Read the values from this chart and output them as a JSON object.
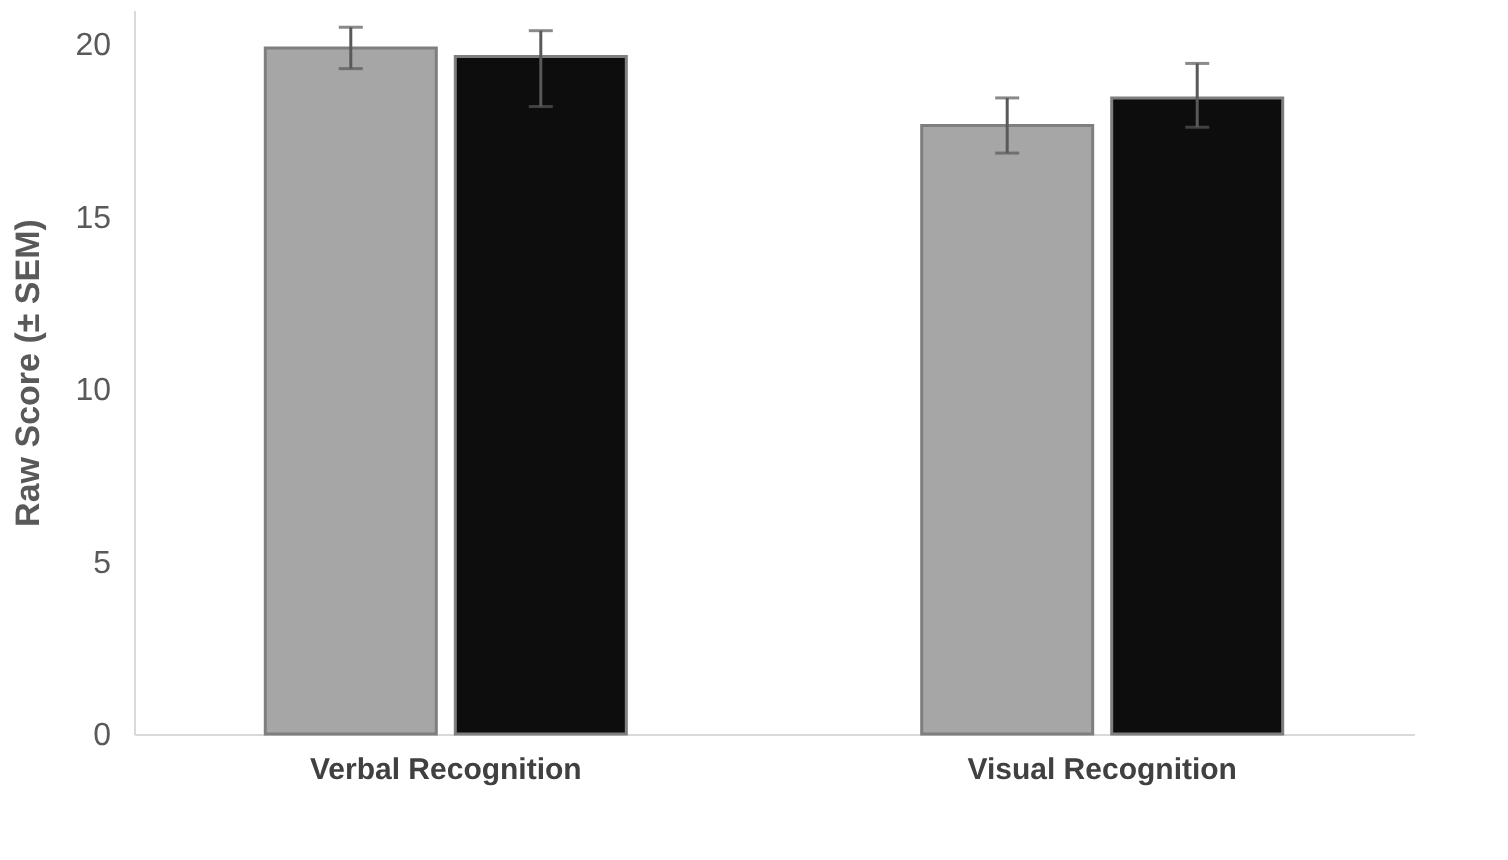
{
  "chart_data": {
    "type": "bar",
    "ylabel": "Raw Score (± SEM)",
    "categories": [
      "Verbal Recognition",
      "Visual Recognition"
    ],
    "series": [
      {
        "color": "#a6a6a6",
        "values": [
          19.9,
          17.65
        ],
        "errors": [
          [
            19.3,
            20.5
          ],
          [
            16.85,
            18.45
          ]
        ]
      },
      {
        "color": "#0d0d0d",
        "values": [
          19.65,
          18.45
        ],
        "errors": [
          [
            18.2,
            20.4
          ],
          [
            17.6,
            19.45
          ]
        ]
      }
    ],
    "ylim": [
      0,
      21
    ],
    "yticks": [
      0,
      5,
      10,
      15,
      20
    ],
    "grid": false,
    "legend": false
  }
}
